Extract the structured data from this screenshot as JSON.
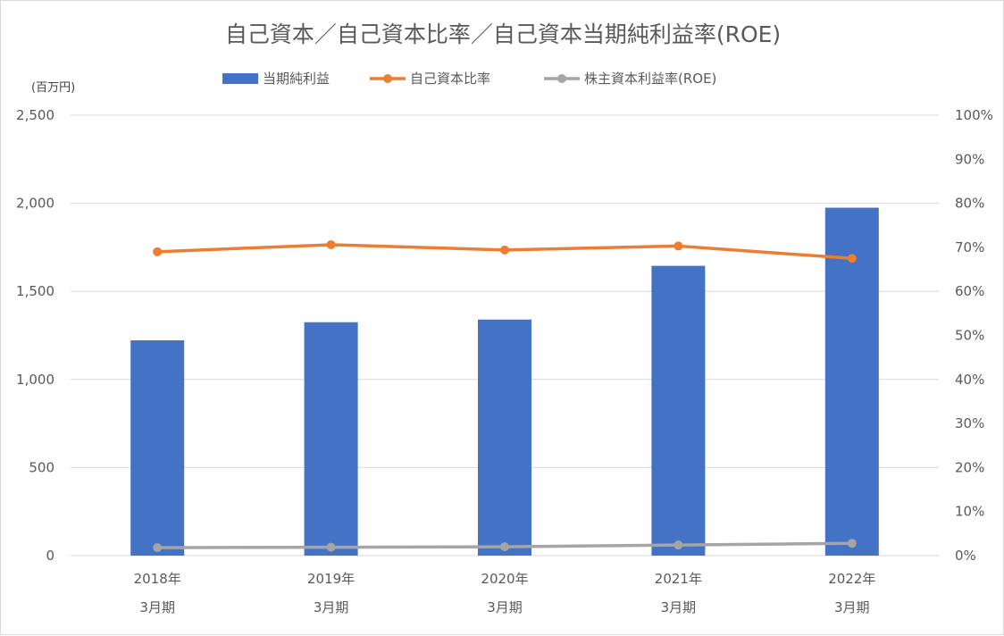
{
  "chart_data": {
    "type": "bar",
    "title": "自己資本／自己資本比率／自己資本当期純利益率(ROE)",
    "y_unit_label": "(百万円)",
    "categories": [
      {
        "year": "2018年",
        "period": "3月期"
      },
      {
        "year": "2019年",
        "period": "3月期"
      },
      {
        "year": "2020年",
        "period": "3月期"
      },
      {
        "year": "2021年",
        "period": "3月期"
      },
      {
        "year": "2022年",
        "period": "3月期"
      }
    ],
    "y_left": {
      "min": 0,
      "max": 2500,
      "step": 500,
      "tick_labels": [
        "0",
        "500",
        "1,000",
        "1,500",
        "2,000",
        "2,500"
      ]
    },
    "y_right": {
      "min": 0,
      "max": 100,
      "step": 10,
      "tick_labels": [
        "0%",
        "10%",
        "20%",
        "30%",
        "40%",
        "50%",
        "60%",
        "70%",
        "80%",
        "90%",
        "100%"
      ]
    },
    "grid": true,
    "legend_position": "top",
    "series": [
      {
        "name": "当期純利益",
        "type": "bar",
        "axis": "left",
        "color": "#4472c4",
        "values": [
          1222,
          1325,
          1340,
          1645,
          1975
        ]
      },
      {
        "name": "自己資本比率",
        "type": "line",
        "axis": "right",
        "color": "#ed7d31",
        "values": [
          69.0,
          70.6,
          69.4,
          70.3,
          67.5
        ]
      },
      {
        "name": "株主資本利益率(ROE)",
        "type": "line",
        "axis": "right",
        "color": "#a5a5a5",
        "values": [
          1.8,
          1.9,
          2.0,
          2.4,
          2.8
        ]
      }
    ]
  }
}
